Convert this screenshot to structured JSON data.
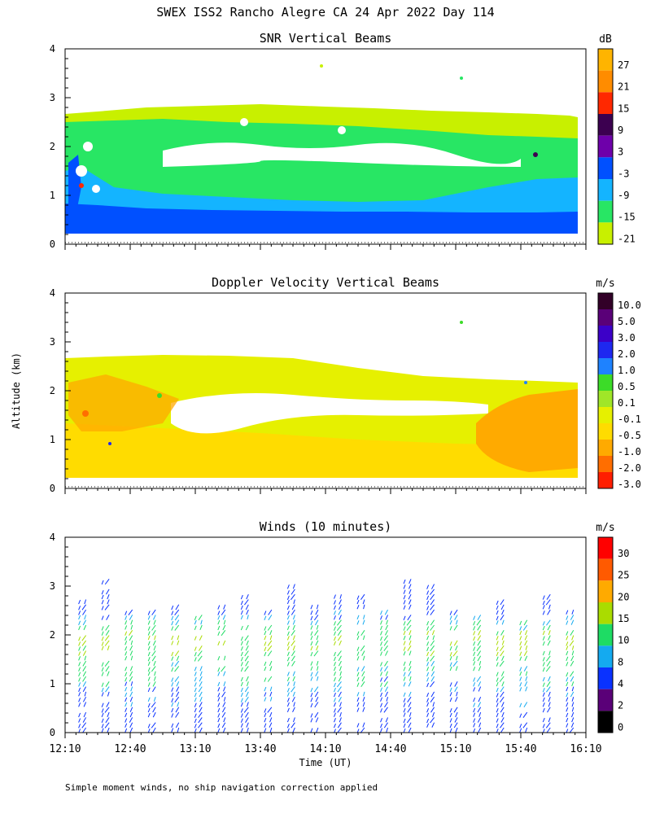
{
  "page": {
    "title": "SWEX ISS2 Rancho Alegre CA  24 Apr 2022 Day 114",
    "ylabel": "Altitude (km)",
    "xlabel": "Time (UT)",
    "footnote": "Simple moment winds, no ship navigation correction applied"
  },
  "time_ticks": [
    "12:10",
    "12:40",
    "13:10",
    "13:40",
    "14:10",
    "14:40",
    "15:10",
    "15:40",
    "16:10"
  ],
  "altitude_ticks": [
    "0",
    "1",
    "2",
    "3",
    "4"
  ],
  "chart_data": [
    {
      "type": "heatmap",
      "id": "snr",
      "title": "SNR Vertical Beams",
      "unit": "dB",
      "xlim_hours": [
        12.1667,
        16.1667
      ],
      "ylim_km": [
        0,
        4
      ],
      "colorbar": {
        "labels": [
          "27",
          "21",
          "15",
          "9",
          "3",
          "-3",
          "-9",
          "-15",
          "-21"
        ],
        "colors": [
          "#ffb400",
          "#ff8c00",
          "#ff2800",
          "#3c0050",
          "#6e00aa",
          "#0050ff",
          "#14b4ff",
          "#28e664",
          "#c8f000"
        ]
      },
      "layers": [
        {
          "label": "weak echo (-21 to -15 dB)",
          "color": "#c8f000",
          "altitude_km": [
            0.15,
            2.6
          ],
          "time_hours": [
            12.18,
            16.0
          ]
        },
        {
          "label": "moderate echo (-15 to -9 dB)",
          "color": "#28e664",
          "altitude_km": [
            0.15,
            2.2
          ],
          "time_hours": [
            12.18,
            16.0
          ]
        },
        {
          "label": "-9 to -3 dB",
          "color": "#14b4ff",
          "altitude_km": [
            0.15,
            1.0
          ],
          "time_hours": [
            12.18,
            16.0
          ]
        },
        {
          "label": "-3 to 3 dB",
          "color": "#0050ff",
          "altitude_km": [
            0.15,
            0.6
          ],
          "time_hours": [
            12.18,
            16.0
          ]
        }
      ]
    },
    {
      "type": "heatmap",
      "id": "velocity",
      "title": "Doppler Velocity Vertical Beams",
      "unit": "m/s",
      "xlim_hours": [
        12.1667,
        16.1667
      ],
      "ylim_km": [
        0,
        4
      ],
      "colorbar": {
        "labels": [
          "10.0",
          "5.0",
          "3.0",
          "2.0",
          "1.0",
          "0.5",
          "0.1",
          "-0.1",
          "-0.5",
          "-1.0",
          "-2.0",
          "-3.0"
        ],
        "colors": [
          "#320028",
          "#5a0078",
          "#3c00c8",
          "#1e28f0",
          "#1e82ff",
          "#3cdc28",
          "#a0e628",
          "#e6f000",
          "#ffdc00",
          "#ffaa00",
          "#ff6e00",
          "#ff1e00"
        ]
      },
      "layers": [
        {
          "label": "near-zero velocity (-0.1 to 0.1 m/s)",
          "color": "#e6f000",
          "altitude_km": [
            0.15,
            2.6
          ],
          "time_hours": [
            12.18,
            16.0
          ]
        },
        {
          "label": "downward -0.5 to -1.0 m/s (late afternoon)",
          "color": "#ffaa00",
          "altitude_km": [
            0.6,
            2.0
          ],
          "time_hours": [
            15.3,
            16.0
          ]
        }
      ]
    },
    {
      "type": "scatter",
      "id": "winds",
      "title": "Winds (10 minutes)",
      "unit": "m/s",
      "xlim_hours": [
        12.1667,
        16.1667
      ],
      "ylim_km": [
        0,
        4
      ],
      "colorbar": {
        "labels": [
          "30",
          "25",
          "20",
          "15",
          "10",
          "8",
          "4",
          "2",
          "0"
        ],
        "colors": [
          "#ff0000",
          "#ff5a00",
          "#ffaa00",
          "#aadc00",
          "#1edc64",
          "#14aaf0",
          "#0a32ff",
          "#5a0078",
          "#000000"
        ]
      },
      "profile_interval_minutes": 10,
      "representative_speeds_ms": [
        {
          "altitude_km": 0.5,
          "speed": 6
        },
        {
          "altitude_km": 1.0,
          "speed": 9
        },
        {
          "altitude_km": 1.5,
          "speed": 12
        },
        {
          "altitude_km": 2.0,
          "speed": 16
        },
        {
          "altitude_km": 2.5,
          "speed": 7
        },
        {
          "altitude_km": 3.0,
          "speed": 5
        }
      ]
    }
  ]
}
